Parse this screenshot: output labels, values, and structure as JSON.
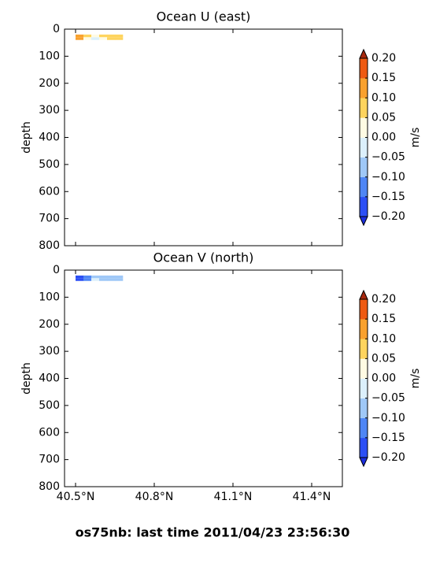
{
  "figure_title": "os75nb: last time 2011/04/23 23:56:30",
  "chart_data": [
    {
      "type": "contour",
      "title": "Ocean U (east)",
      "ylabel": "depth",
      "ylim": [
        800,
        0
      ],
      "yticks": [
        0,
        100,
        200,
        300,
        400,
        500,
        600,
        700,
        800
      ],
      "xlim": [
        40.458,
        41.517
      ],
      "xticks": [
        40.5,
        40.8,
        41.1,
        41.4
      ],
      "xbins": [
        40.5,
        40.53,
        40.56,
        40.59,
        40.62,
        40.65,
        40.68
      ],
      "depth_bins": [
        20,
        30,
        40
      ],
      "values": [
        [
          0.12,
          0.08,
          0.02,
          0.06,
          0.08,
          0.08
        ],
        [
          0.11,
          0.04,
          -0.03,
          0.04,
          0.07,
          0.07
        ]
      ],
      "colorbar_label": "m/s",
      "levels": [
        {
          "value": -0.2,
          "label": "−0.20"
        },
        {
          "value": -0.15,
          "label": "−0.15"
        },
        {
          "value": -0.1,
          "label": "−0.10"
        },
        {
          "value": -0.05,
          "label": "−0.05"
        },
        {
          "value": 0,
          "label": "0.00"
        },
        {
          "value": 0.05,
          "label": "0.05"
        },
        {
          "value": 0.1,
          "label": "0.10"
        },
        {
          "value": 0.15,
          "label": "0.15"
        },
        {
          "value": 0.2,
          "label": "0.20"
        }
      ],
      "colors": [
        "#2b4ff5",
        "#4f86f5",
        "#9fc8f7",
        "#dcf0fc",
        "#fffbe3",
        "#fed45e",
        "#f9a12e",
        "#ee5a12"
      ],
      "under_color": "#1b2ee0",
      "over_color": "#a8280e"
    },
    {
      "type": "contour",
      "title": "Ocean V (north)",
      "ylabel": "depth",
      "ylim": [
        800,
        0
      ],
      "yticks": [
        0,
        100,
        200,
        300,
        400,
        500,
        600,
        700,
        800
      ],
      "xlim": [
        40.458,
        41.517
      ],
      "xticks": [
        {
          "value": 40.5,
          "label": "40.5°N"
        },
        {
          "value": 40.8,
          "label": "40.8°N"
        },
        {
          "value": 41.1,
          "label": "41.1°N"
        },
        {
          "value": 41.4,
          "label": "41.4°N"
        }
      ],
      "xbins": [
        40.5,
        40.53,
        40.56,
        40.59,
        40.62,
        40.65,
        40.68
      ],
      "depth_bins": [
        20,
        30,
        40
      ],
      "values": [
        [
          -0.17,
          -0.12,
          -0.07,
          -0.08,
          -0.07,
          -0.07
        ],
        [
          -0.16,
          -0.11,
          -0.03,
          -0.07,
          -0.07,
          -0.07
        ]
      ],
      "colorbar_label": "m/s",
      "levels": [
        {
          "value": -0.2,
          "label": "−0.20"
        },
        {
          "value": -0.15,
          "label": "−0.15"
        },
        {
          "value": -0.1,
          "label": "−0.10"
        },
        {
          "value": -0.05,
          "label": "−0.05"
        },
        {
          "value": 0,
          "label": "0.00"
        },
        {
          "value": 0.05,
          "label": "0.05"
        },
        {
          "value": 0.1,
          "label": "0.10"
        },
        {
          "value": 0.15,
          "label": "0.15"
        },
        {
          "value": 0.2,
          "label": "0.20"
        }
      ],
      "colors": [
        "#2b4ff5",
        "#4f86f5",
        "#9fc8f7",
        "#dcf0fc",
        "#fffbe3",
        "#fed45e",
        "#f9a12e",
        "#ee5a12"
      ],
      "under_color": "#1b2ee0",
      "over_color": "#a8280e"
    }
  ]
}
